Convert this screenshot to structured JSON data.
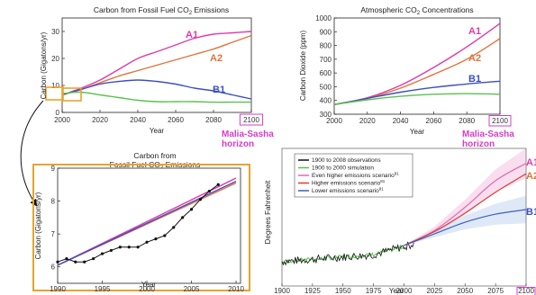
{
  "colors": {
    "A1": "#e23aa8",
    "A2": "#e2733a",
    "B1": "#3c4fc4",
    "green": "#59c24e",
    "black": "#111111",
    "highlight": "#e8a32e",
    "note": "#d63cc8",
    "ext_red": "#e03a3a",
    "ext_blue": "#3d5fbf",
    "ext_pink": "#e06ab0"
  },
  "annotations": {
    "horizon_line1": "Malia-Sasha",
    "horizon_line2": "horizon"
  },
  "chart_data": [
    {
      "id": "fossil",
      "type": "line",
      "title": "Carbon from Fossil Fuel CO₂ Emissions",
      "title_main": "Carbon from Fossil Fuel CO",
      "title_sub": "2",
      "title_end": " Emissions",
      "xlabel": "Year",
      "ylabel": "Carbon (Gigatons/yr)",
      "xlim": [
        2000,
        2100
      ],
      "ylim": [
        0,
        35
      ],
      "xticks": [
        2000,
        2020,
        2040,
        2060,
        2080,
        2100
      ],
      "yticks": [
        0,
        10,
        20,
        30
      ],
      "highlight_tick": "2100",
      "series": [
        {
          "name": "A1",
          "color": "A1",
          "x": [
            2000,
            2010,
            2020,
            2030,
            2040,
            2050,
            2060,
            2070,
            2080,
            2090,
            2100
          ],
          "y": [
            6.5,
            9,
            12,
            16,
            20,
            22.5,
            25,
            27.5,
            29,
            29.5,
            30
          ]
        },
        {
          "name": "A2",
          "color": "A2",
          "x": [
            2000,
            2010,
            2020,
            2030,
            2040,
            2050,
            2060,
            2070,
            2080,
            2090,
            2100
          ],
          "y": [
            6.5,
            8.5,
            11,
            13.5,
            15.5,
            17.5,
            19.5,
            21.5,
            23.5,
            26,
            28.5
          ]
        },
        {
          "name": "B1",
          "color": "B1",
          "x": [
            2000,
            2010,
            2020,
            2030,
            2040,
            2050,
            2060,
            2070,
            2080,
            2090,
            2100
          ],
          "y": [
            6.5,
            8.5,
            10.5,
            11.5,
            12,
            11.5,
            10.5,
            9,
            8,
            6.5,
            5
          ]
        },
        {
          "name": "",
          "color": "green",
          "x": [
            2000,
            2010,
            2020,
            2030,
            2040,
            2050,
            2060,
            2070,
            2080,
            2090,
            2100
          ],
          "y": [
            7,
            7.5,
            6.5,
            5.5,
            4.5,
            4,
            4,
            4,
            3.8,
            3.8,
            3.8
          ]
        }
      ]
    },
    {
      "id": "conc",
      "type": "line",
      "title": "Atmospheric CO₂ Concentrations",
      "title_main": "Atmospheric CO",
      "title_sub": "2",
      "title_end": " Concentrations",
      "xlabel": "Year",
      "ylabel": "Carbon Dioxide (ppm)",
      "xlim": [
        2000,
        2100
      ],
      "ylim": [
        300,
        1000
      ],
      "xticks": [
        2000,
        2020,
        2040,
        2060,
        2080,
        2100
      ],
      "yticks": [
        300,
        400,
        500,
        600,
        700,
        800,
        900,
        1000
      ],
      "highlight_tick": "2100",
      "series": [
        {
          "name": "A1",
          "color": "A1",
          "x": [
            2000,
            2020,
            2040,
            2060,
            2080,
            2100
          ],
          "y": [
            370,
            420,
            510,
            640,
            790,
            960
          ]
        },
        {
          "name": "A2",
          "color": "A2",
          "x": [
            2000,
            2020,
            2040,
            2060,
            2080,
            2100
          ],
          "y": [
            370,
            415,
            490,
            590,
            700,
            850
          ]
        },
        {
          "name": "B1",
          "color": "B1",
          "x": [
            2000,
            2020,
            2040,
            2060,
            2080,
            2100
          ],
          "y": [
            370,
            415,
            460,
            495,
            520,
            540
          ]
        },
        {
          "name": "",
          "color": "green",
          "x": [
            2000,
            2020,
            2040,
            2060,
            2080,
            2100
          ],
          "y": [
            370,
            405,
            430,
            445,
            450,
            445
          ]
        }
      ]
    },
    {
      "id": "zoom",
      "type": "line",
      "title_line1": "Carbon from",
      "title_main": "Fossil Fuel CO",
      "title_sub": "2",
      "title_end": " Emissions",
      "xlabel": "Year",
      "ylabel": "Carbon (Gigatons/yr)",
      "xlim": [
        1990,
        2010.5
      ],
      "ylim": [
        5.5,
        9
      ],
      "xticks": [
        1990,
        1995,
        2000,
        2005,
        2010
      ],
      "yticks": [
        6,
        7,
        8,
        9
      ],
      "series": [
        {
          "name": "observations",
          "color": "black",
          "x": [
            1990,
            1991,
            1992,
            1993,
            1994,
            1995,
            1996,
            1997,
            1998,
            1999,
            2000,
            2001,
            2002,
            2003,
            2004,
            2005,
            2006,
            2007,
            2008
          ],
          "y": [
            6.15,
            6.25,
            6.15,
            6.15,
            6.25,
            6.4,
            6.5,
            6.6,
            6.6,
            6.6,
            6.75,
            6.85,
            6.95,
            7.2,
            7.5,
            7.75,
            8.05,
            8.3,
            8.5
          ]
        },
        {
          "name": "A1",
          "color": "A1",
          "x": [
            1990,
            2010
          ],
          "y": [
            6.05,
            8.7
          ]
        },
        {
          "name": "A2",
          "color": "A2",
          "x": [
            1990,
            2010
          ],
          "y": [
            6.05,
            8.55
          ]
        },
        {
          "name": "B1",
          "color": "B1",
          "x": [
            1990,
            2010
          ],
          "y": [
            6.05,
            8.6
          ]
        }
      ]
    },
    {
      "id": "temp",
      "type": "line",
      "xlabel": "Year",
      "ylabel": "Degrees Fahrenheit",
      "xlim": [
        1900,
        2100
      ],
      "xticks": [
        1900,
        1925,
        1950,
        1975,
        2000,
        2025,
        2050,
        2075,
        2100
      ],
      "highlight_tick": "2100",
      "legend": [
        {
          "label": "1900 to 2008 observations",
          "color": "black"
        },
        {
          "label": "1900 to 2000 simulation",
          "color": "green"
        },
        {
          "label": "Even higher emissions scenario",
          "sup": "81",
          "color": "ext_pink"
        },
        {
          "label": "Higher emissions scenario",
          "sup": "81",
          "color": "ext_red"
        },
        {
          "label": "Lower emissions scenario",
          "sup": "81",
          "color": "ext_blue"
        }
      ],
      "end_labels": [
        "A1",
        "A2",
        "B1"
      ],
      "series": [
        {
          "name": "Even higher emissions scenario",
          "color": "ext_pink",
          "x": [
            2000,
            2025,
            2050,
            2075,
            2100
          ],
          "y": [
            1.0,
            2.3,
            4.3,
            6.6,
            8.1
          ]
        },
        {
          "name": "Higher emissions scenario",
          "color": "ext_red",
          "x": [
            2000,
            2025,
            2050,
            2075,
            2100
          ],
          "y": [
            1.0,
            2.2,
            3.8,
            5.6,
            7.2
          ]
        },
        {
          "name": "Lower emissions scenario",
          "color": "ext_blue",
          "x": [
            2000,
            2025,
            2050,
            2075,
            2100
          ],
          "y": [
            1.0,
            2.0,
            3.0,
            3.7,
            4.1
          ]
        }
      ]
    }
  ]
}
